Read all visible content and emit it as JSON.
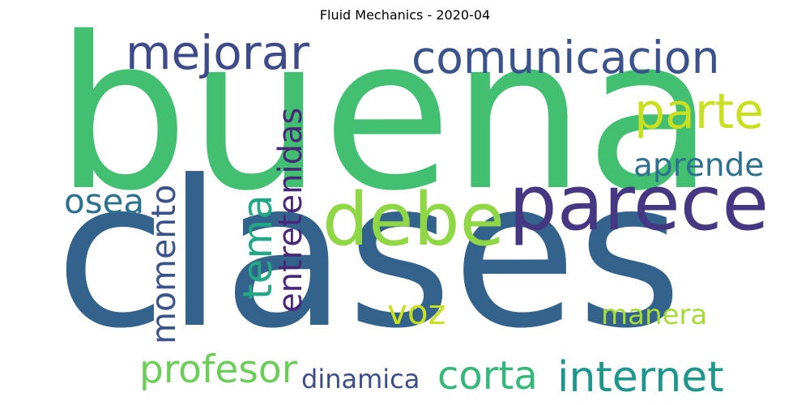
{
  "title": "Fluid Mechanics - 2020-04",
  "words": [
    {
      "text": "buena",
      "color": "#43bf71"
    },
    {
      "text": "clases",
      "color": "#33638d"
    },
    {
      "text": "mejorar",
      "color": "#3f4a8a"
    },
    {
      "text": "comunicacion",
      "color": "#3b528b"
    },
    {
      "text": "parte",
      "color": "#c8e020"
    },
    {
      "text": "parece",
      "color": "#453781"
    },
    {
      "text": "debe",
      "color": "#8fd744"
    },
    {
      "text": "aprende",
      "color": "#2c728e"
    },
    {
      "text": "tema",
      "color": "#22a884"
    },
    {
      "text": "entretenidas",
      "color": "#482878"
    },
    {
      "text": "momento",
      "color": "#3b528b"
    },
    {
      "text": "osea",
      "color": "#2c728e"
    },
    {
      "text": "voz",
      "color": "#c8e020"
    },
    {
      "text": "manera",
      "color": "#a5db36"
    },
    {
      "text": "profesor",
      "color": "#6ccd5a"
    },
    {
      "text": "dinamica",
      "color": "#3e4c8a"
    },
    {
      "text": "corta",
      "color": "#35b779"
    },
    {
      "text": "internet",
      "color": "#1f968b"
    }
  ]
}
